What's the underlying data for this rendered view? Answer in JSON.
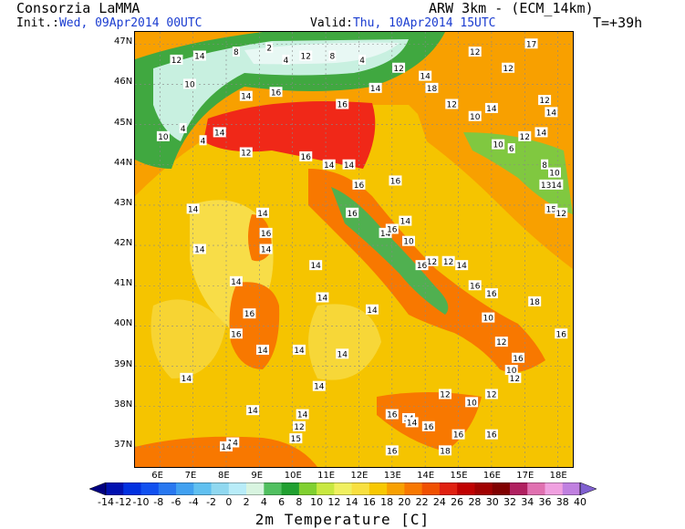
{
  "header": {
    "org": "Consorzia LaMMA",
    "model": "ARW 3km - (ECM_14km)",
    "init_label": "Init.:",
    "init_value": "Wed, 09Apr2014 00UTC",
    "valid_label": "Valid:",
    "valid_value": "Thu, 10Apr2014 15UTC",
    "forecast_step": "T=+39h"
  },
  "map": {
    "lat_labels": [
      "47N",
      "46N",
      "45N",
      "44N",
      "43N",
      "42N",
      "41N",
      "40N",
      "39N",
      "38N",
      "37N"
    ],
    "lon_labels": [
      "6E",
      "7E",
      "8E",
      "9E",
      "10E",
      "11E",
      "12E",
      "13E",
      "14E",
      "15E",
      "16E",
      "17E",
      "18E"
    ],
    "point_values": [
      {
        "text": "12",
        "lon": 6.5,
        "lat": 46.6
      },
      {
        "text": "14",
        "lon": 7.2,
        "lat": 46.7
      },
      {
        "text": "8",
        "lon": 8.3,
        "lat": 46.8
      },
      {
        "text": "2",
        "lon": 9.3,
        "lat": 46.9
      },
      {
        "text": "4",
        "lon": 9.8,
        "lat": 46.6
      },
      {
        "text": "10",
        "lon": 6.9,
        "lat": 46.0
      },
      {
        "text": "12",
        "lon": 10.4,
        "lat": 46.7
      },
      {
        "text": "8",
        "lon": 11.2,
        "lat": 46.7
      },
      {
        "text": "4",
        "lon": 12.1,
        "lat": 46.6
      },
      {
        "text": "12",
        "lon": 13.2,
        "lat": 46.4
      },
      {
        "text": "14",
        "lon": 14.0,
        "lat": 46.2
      },
      {
        "text": "12",
        "lon": 15.5,
        "lat": 46.8
      },
      {
        "text": "17",
        "lon": 17.2,
        "lat": 47.0
      },
      {
        "text": "12",
        "lon": 16.5,
        "lat": 46.4
      },
      {
        "text": "14",
        "lon": 12.5,
        "lat": 45.9
      },
      {
        "text": "18",
        "lon": 14.2,
        "lat": 45.9
      },
      {
        "text": "16",
        "lon": 9.5,
        "lat": 45.8
      },
      {
        "text": "14",
        "lon": 8.6,
        "lat": 45.7
      },
      {
        "text": "16",
        "lon": 11.5,
        "lat": 45.5
      },
      {
        "text": "12",
        "lon": 14.8,
        "lat": 45.5
      },
      {
        "text": "10",
        "lon": 15.5,
        "lat": 45.2
      },
      {
        "text": "14",
        "lon": 16.0,
        "lat": 45.4
      },
      {
        "text": "12",
        "lon": 17.6,
        "lat": 45.6
      },
      {
        "text": "14",
        "lon": 17.8,
        "lat": 45.3
      },
      {
        "text": "10",
        "lon": 6.1,
        "lat": 44.7
      },
      {
        "text": "4",
        "lon": 6.7,
        "lat": 44.9
      },
      {
        "text": "4",
        "lon": 7.3,
        "lat": 44.6
      },
      {
        "text": "14",
        "lon": 7.8,
        "lat": 44.8
      },
      {
        "text": "12",
        "lon": 8.6,
        "lat": 44.3
      },
      {
        "text": "16",
        "lon": 10.4,
        "lat": 44.2
      },
      {
        "text": "14",
        "lon": 11.1,
        "lat": 44.0
      },
      {
        "text": "14",
        "lon": 11.7,
        "lat": 44.0
      },
      {
        "text": "16",
        "lon": 12.0,
        "lat": 43.5
      },
      {
        "text": "16",
        "lon": 13.1,
        "lat": 43.6
      },
      {
        "text": "10",
        "lon": 16.2,
        "lat": 44.5
      },
      {
        "text": "6",
        "lon": 16.6,
        "lat": 44.4
      },
      {
        "text": "12",
        "lon": 17.0,
        "lat": 44.7
      },
      {
        "text": "14",
        "lon": 17.5,
        "lat": 44.8
      },
      {
        "text": "8",
        "lon": 17.6,
        "lat": 44.0
      },
      {
        "text": "10",
        "lon": 17.9,
        "lat": 43.8
      },
      {
        "text": "1314",
        "lon": 17.8,
        "lat": 43.5
      },
      {
        "text": "15",
        "lon": 17.8,
        "lat": 42.9
      },
      {
        "text": "12",
        "lon": 18.1,
        "lat": 42.8
      },
      {
        "text": "14",
        "lon": 7.0,
        "lat": 42.9
      },
      {
        "text": "14",
        "lon": 9.1,
        "lat": 42.8
      },
      {
        "text": "16",
        "lon": 9.2,
        "lat": 42.3
      },
      {
        "text": "14",
        "lon": 9.2,
        "lat": 41.9
      },
      {
        "text": "14",
        "lon": 7.2,
        "lat": 41.9
      },
      {
        "text": "16",
        "lon": 11.8,
        "lat": 42.8
      },
      {
        "text": "14",
        "lon": 12.8,
        "lat": 42.3
      },
      {
        "text": "10",
        "lon": 13.5,
        "lat": 42.1
      },
      {
        "text": "16",
        "lon": 13.0,
        "lat": 42.4
      },
      {
        "text": "14",
        "lon": 13.4,
        "lat": 42.6
      },
      {
        "text": "12",
        "lon": 14.2,
        "lat": 41.6
      },
      {
        "text": "16",
        "lon": 13.9,
        "lat": 41.5
      },
      {
        "text": "12",
        "lon": 14.7,
        "lat": 41.6
      },
      {
        "text": "14",
        "lon": 15.1,
        "lat": 41.5
      },
      {
        "text": "14",
        "lon": 10.7,
        "lat": 41.5
      },
      {
        "text": "14",
        "lon": 8.3,
        "lat": 41.1
      },
      {
        "text": "14",
        "lon": 10.9,
        "lat": 40.7
      },
      {
        "text": "14",
        "lon": 12.4,
        "lat": 40.4
      },
      {
        "text": "16",
        "lon": 8.7,
        "lat": 40.3
      },
      {
        "text": "16",
        "lon": 8.3,
        "lat": 39.8
      },
      {
        "text": "14",
        "lon": 9.1,
        "lat": 39.4
      },
      {
        "text": "14",
        "lon": 10.2,
        "lat": 39.4
      },
      {
        "text": "14",
        "lon": 11.5,
        "lat": 39.3
      },
      {
        "text": "16",
        "lon": 15.5,
        "lat": 41.0
      },
      {
        "text": "16",
        "lon": 16.0,
        "lat": 40.8
      },
      {
        "text": "10",
        "lon": 15.9,
        "lat": 40.2
      },
      {
        "text": "18",
        "lon": 17.3,
        "lat": 40.6
      },
      {
        "text": "16",
        "lon": 18.1,
        "lat": 39.8
      },
      {
        "text": "12",
        "lon": 16.3,
        "lat": 39.6
      },
      {
        "text": "16",
        "lon": 16.8,
        "lat": 39.2
      },
      {
        "text": "10",
        "lon": 16.6,
        "lat": 38.9
      },
      {
        "text": "12",
        "lon": 16.7,
        "lat": 38.7
      },
      {
        "text": "14",
        "lon": 6.8,
        "lat": 38.7
      },
      {
        "text": "14",
        "lon": 10.8,
        "lat": 38.5
      },
      {
        "text": "12",
        "lon": 14.6,
        "lat": 38.3
      },
      {
        "text": "10",
        "lon": 15.4,
        "lat": 38.1
      },
      {
        "text": "12",
        "lon": 16.0,
        "lat": 38.3
      },
      {
        "text": "14",
        "lon": 8.8,
        "lat": 37.9
      },
      {
        "text": "14",
        "lon": 10.3,
        "lat": 37.8
      },
      {
        "text": "12",
        "lon": 10.2,
        "lat": 37.5
      },
      {
        "text": "16",
        "lon": 13.0,
        "lat": 37.8
      },
      {
        "text": "14",
        "lon": 13.5,
        "lat": 37.7
      },
      {
        "text": "14",
        "lon": 13.6,
        "lat": 37.6
      },
      {
        "text": "16",
        "lon": 14.1,
        "lat": 37.5
      },
      {
        "text": "16",
        "lon": 15.0,
        "lat": 37.3
      },
      {
        "text": "16",
        "lon": 16.0,
        "lat": 37.3
      },
      {
        "text": "14",
        "lon": 8.2,
        "lat": 37.1
      },
      {
        "text": "16",
        "lon": 13.0,
        "lat": 36.9
      },
      {
        "text": "18",
        "lon": 14.6,
        "lat": 36.9
      },
      {
        "text": "15",
        "lon": 10.1,
        "lat": 37.2
      },
      {
        "text": "14",
        "lon": 8.0,
        "lat": 37.0
      }
    ]
  },
  "colorbar": {
    "labels": [
      "-14",
      "-12",
      "-10",
      "-8",
      "-6",
      "-4",
      "-2",
      "0",
      "2",
      "4",
      "6",
      "8",
      "10",
      "12",
      "14",
      "16",
      "18",
      "20",
      "22",
      "24",
      "26",
      "28",
      "30",
      "32",
      "34",
      "36",
      "38",
      "40"
    ],
    "colors": [
      "#000080",
      "#0010b0",
      "#0030e0",
      "#1050f0",
      "#2878f0",
      "#40a0f0",
      "#60c0f0",
      "#90d8f0",
      "#b8ecf8",
      "#d8f4e0",
      "#50c060",
      "#20a030",
      "#80d030",
      "#c8e840",
      "#f0f060",
      "#f8e040",
      "#f8c800",
      "#f8a000",
      "#f87800",
      "#f05000",
      "#e02010",
      "#c00000",
      "#a00000",
      "#800000",
      "#b02060",
      "#e070b0",
      "#f0a0e0",
      "#c080e0",
      "#8060d0"
    ],
    "title": "2m Temperature [C]"
  },
  "colors": {
    "sea_yellow": "#f5c400",
    "warm_orange": "#f8a000",
    "hot_red": "#f02818",
    "land_green": "#50b050",
    "alpine_white": "#e8f4f0",
    "label_blue": "#1a3cd0"
  }
}
